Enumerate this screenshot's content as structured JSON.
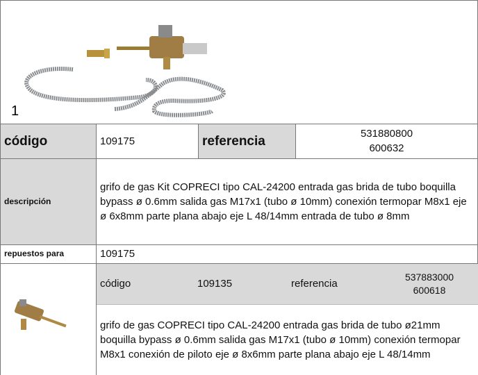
{
  "image_caption": "1",
  "product": {
    "codigo_label": "código",
    "codigo": "109175",
    "referencia_label": "referencia",
    "referencia": [
      "531880800",
      "600632"
    ],
    "descripcion_label": "descripción",
    "descripcion": "grifo de gas  Kit COPRECI tipo CAL-24200 entrada gas brida de tubo boquilla bypass ø 0.6mm salida gas M17x1 (tubo ø 10mm) conexión termopar M8x1 eje ø 6x8mm parte plana abajo eje L 48/14mm entrada de tubo ø 8mm",
    "repuestos_label": "repuestos para",
    "repuestos": "109175"
  },
  "spare_part": {
    "codigo_label": "código",
    "codigo": "109135",
    "referencia_label": "referencia",
    "referencia": [
      "537883000",
      "600618"
    ],
    "descripcion": "grifo de gas  COPRECI tipo CAL-24200 entrada gas brida de tubo ø21mm boquilla bypass ø 0.6mm salida gas M17x1 (tubo ø 10mm) conexión termopar M8x1 conexión de piloto eje ø 8x6mm parte plana abajo eje L 48/14mm"
  }
}
